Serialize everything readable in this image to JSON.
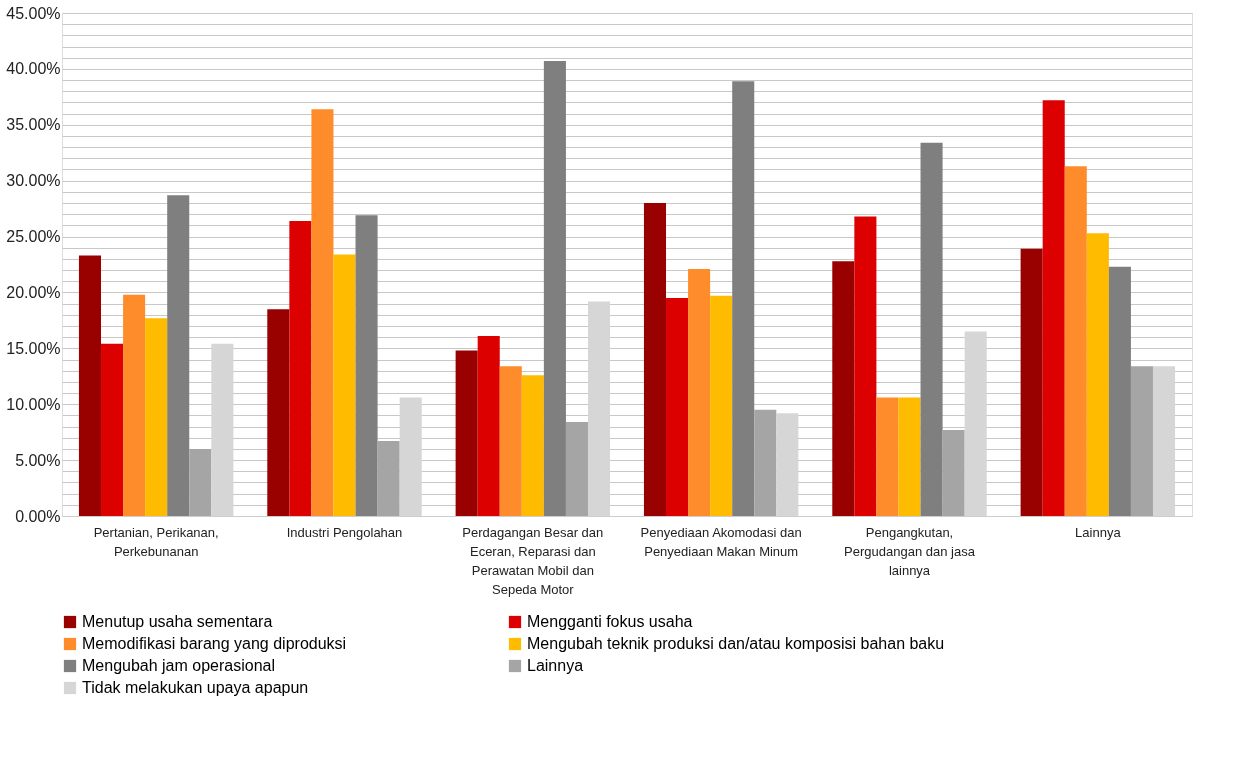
{
  "chart_data": {
    "type": "bar",
    "categories": [
      "Pertanian, Perikanan, Perkebunanan",
      "Industri Pengolahan",
      "Perdagangan Besar dan Eceran, Reparasi dan Perawatan Mobil dan Sepeda Motor",
      "Penyediaan Akomodasi dan Penyediaan Makan Minum",
      "Pengangkutan, Pergudangan dan jasa lainnya",
      "Lainnya"
    ],
    "series": [
      {
        "name": "Menutup usaha sementara",
        "color": "#990000",
        "values": [
          23.3,
          18.5,
          14.8,
          28.0,
          22.8,
          23.9
        ]
      },
      {
        "name": "Mengganti fokus usaha",
        "color": "#dd0000",
        "values": [
          15.4,
          26.4,
          16.1,
          19.5,
          26.8,
          37.2
        ]
      },
      {
        "name": "Memodifikasi barang yang diproduksi",
        "color": "#ff8c2b",
        "values": [
          19.8,
          36.4,
          13.4,
          22.1,
          10.6,
          31.3
        ]
      },
      {
        "name": "Mengubah teknik produksi dan/atau komposisi bahan baku",
        "color": "#ffbb00",
        "values": [
          17.7,
          23.4,
          12.6,
          19.7,
          10.6,
          25.3
        ]
      },
      {
        "name": "Mengubah jam operasional",
        "color": "#7f7f7f",
        "values": [
          28.7,
          26.9,
          40.7,
          38.9,
          33.4,
          22.3
        ]
      },
      {
        "name": "Lainnya",
        "color": "#a5a5a5",
        "values": [
          6.0,
          6.7,
          8.4,
          9.5,
          7.7,
          13.4
        ]
      },
      {
        "name": "Tidak melakukan upaya apapun",
        "color": "#d6d6d6",
        "values": [
          15.4,
          10.6,
          19.2,
          9.2,
          16.5,
          13.4
        ]
      }
    ],
    "ylim": [
      0,
      45
    ],
    "yticks": [
      {
        "value": 0,
        "label": "0.00%"
      },
      {
        "value": 1,
        "label": null
      },
      {
        "value": 2,
        "label": null
      },
      {
        "value": 3,
        "label": null
      },
      {
        "value": 4,
        "label": null
      },
      {
        "value": 5,
        "label": "5.00%"
      },
      {
        "value": 6,
        "label": null
      },
      {
        "value": 7,
        "label": null
      },
      {
        "value": 8,
        "label": null
      },
      {
        "value": 9,
        "label": null
      },
      {
        "value": 10,
        "label": "10.00%"
      },
      {
        "value": 11,
        "label": null
      },
      {
        "value": 12,
        "label": null
      },
      {
        "value": 13,
        "label": null
      },
      {
        "value": 14,
        "label": null
      },
      {
        "value": 15,
        "label": "15.00%"
      },
      {
        "value": 16,
        "label": null
      },
      {
        "value": 17,
        "label": null
      },
      {
        "value": 18,
        "label": null
      },
      {
        "value": 19,
        "label": null
      },
      {
        "value": 20,
        "label": "20.00%"
      },
      {
        "value": 21,
        "label": null
      },
      {
        "value": 22,
        "label": null
      },
      {
        "value": 23,
        "label": null
      },
      {
        "value": 24,
        "label": null
      },
      {
        "value": 25,
        "label": "25.00%"
      },
      {
        "value": 26,
        "label": null
      },
      {
        "value": 27,
        "label": null
      },
      {
        "value": 28,
        "label": null
      },
      {
        "value": 29,
        "label": null
      },
      {
        "value": 30,
        "label": "30.00%"
      },
      {
        "value": 31,
        "label": null
      },
      {
        "value": 32,
        "label": null
      },
      {
        "value": 33,
        "label": null
      },
      {
        "value": 34,
        "label": null
      },
      {
        "value": 35,
        "label": "35.00%"
      },
      {
        "value": 36,
        "label": null
      },
      {
        "value": 37,
        "label": null
      },
      {
        "value": 38,
        "label": null
      },
      {
        "value": 39,
        "label": null
      },
      {
        "value": 40,
        "label": "40.00%"
      },
      {
        "value": 41,
        "label": null
      },
      {
        "value": 42,
        "label": null
      },
      {
        "value": 43,
        "label": null
      },
      {
        "value": 44,
        "label": null
      },
      {
        "value": 45,
        "label": "45.00%"
      }
    ],
    "grid": "y",
    "legend": "bottom"
  }
}
